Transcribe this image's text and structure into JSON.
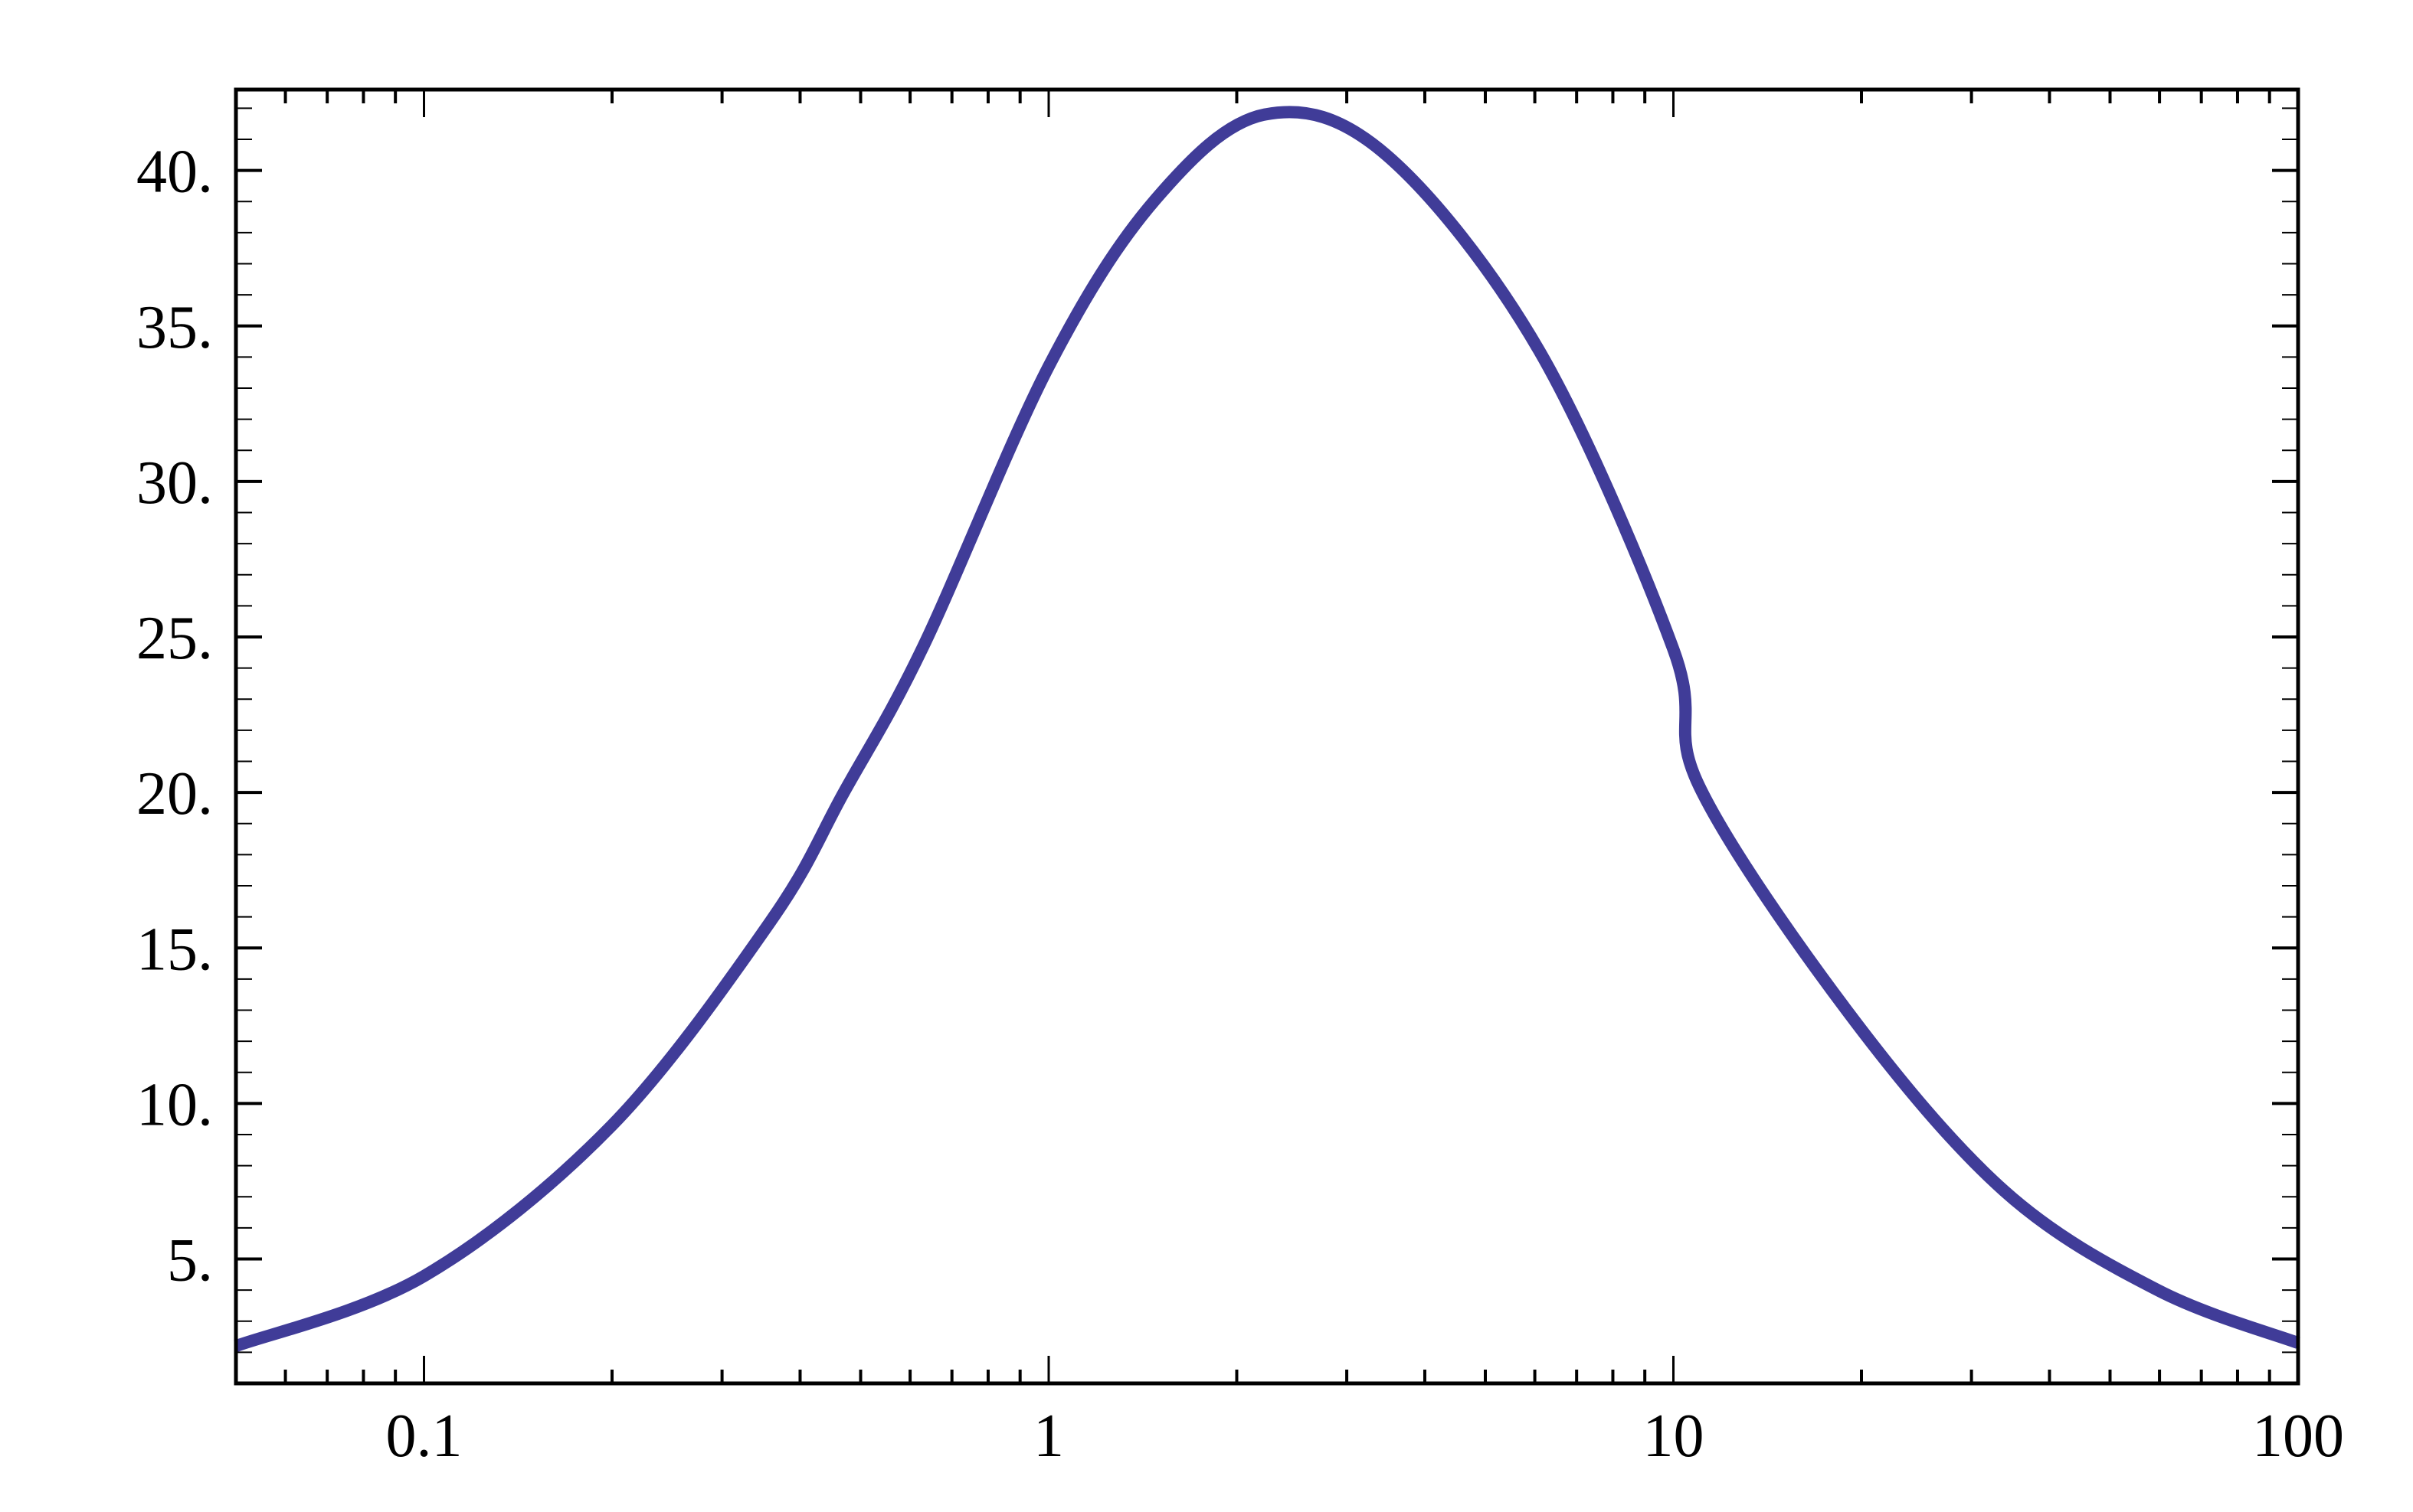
{
  "chart_data": {
    "type": "line",
    "title": "",
    "xlabel": "",
    "ylabel": "",
    "x_scale": "log",
    "xlim": [
      0.05,
      100
    ],
    "ylim": [
      1.0,
      42.6
    ],
    "grid": false,
    "frame": true,
    "x_ticks": [
      {
        "value": 0.1,
        "label": "0.1"
      },
      {
        "value": 1,
        "label": "1"
      },
      {
        "value": 10,
        "label": "10"
      },
      {
        "value": 100,
        "label": "100"
      }
    ],
    "y_ticks": [
      {
        "value": 5,
        "label": "5."
      },
      {
        "value": 10,
        "label": "10."
      },
      {
        "value": 15,
        "label": "15."
      },
      {
        "value": 20,
        "label": "20."
      },
      {
        "value": 25,
        "label": "25."
      },
      {
        "value": 30,
        "label": "30."
      },
      {
        "value": 35,
        "label": "35."
      },
      {
        "value": 40,
        "label": "40."
      }
    ],
    "series": [
      {
        "color": "#403c98",
        "x": [
          0.05,
          0.1,
          0.2,
          0.36,
          0.47,
          0.63,
          1.0,
          1.48,
          2.22,
          3.47,
          6.1,
          10,
          11,
          19.1,
          33.8,
          59.6,
          100
        ],
        "y": [
          2.2,
          4.45,
          9.3,
          15.9,
          20.0,
          24.7,
          33.7,
          39.05,
          41.8,
          40.5,
          34.2,
          24.6,
          20.2,
          12.9,
          7.2,
          4.0,
          2.3
        ]
      }
    ]
  }
}
